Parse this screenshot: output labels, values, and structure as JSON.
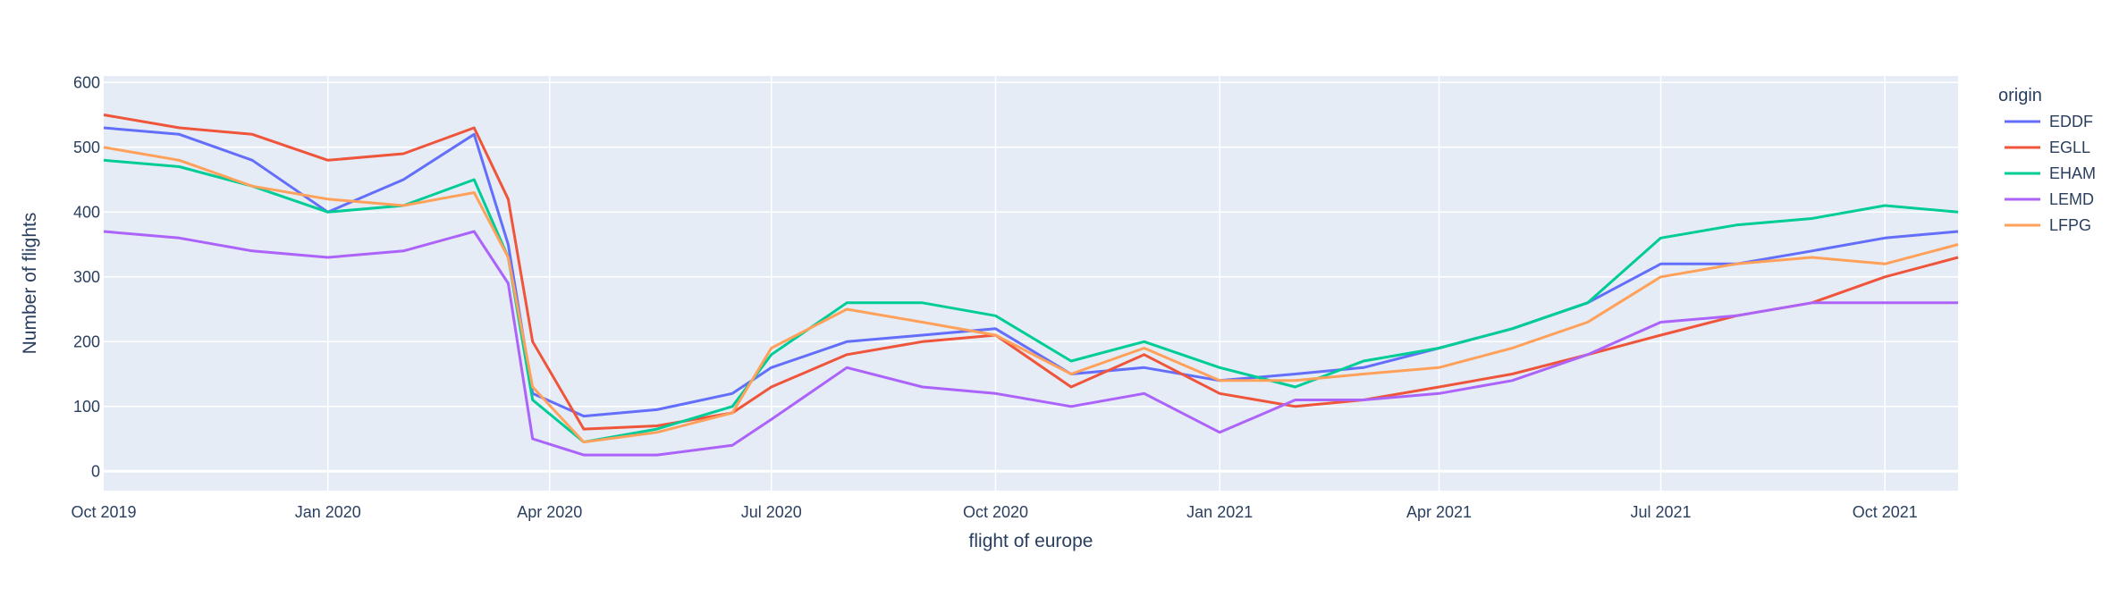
{
  "chart_data": {
    "type": "line",
    "title": "",
    "xlabel": "flight of europe",
    "ylabel": "Number of flights",
    "legend_title": "origin",
    "legend_position": "right",
    "grid": true,
    "plot_background": "#E5ECF6",
    "x_range": [
      "2019-10-01",
      "2021-10-31"
    ],
    "ylim": [
      -30,
      610
    ],
    "x_ticks": [
      {
        "date": "2019-10-01",
        "label": "Oct 2019"
      },
      {
        "date": "2020-01-01",
        "label": "Jan 2020"
      },
      {
        "date": "2020-04-01",
        "label": "Apr 2020"
      },
      {
        "date": "2020-07-01",
        "label": "Jul 2020"
      },
      {
        "date": "2020-10-01",
        "label": "Oct 2020"
      },
      {
        "date": "2021-01-01",
        "label": "Jan 2021"
      },
      {
        "date": "2021-04-01",
        "label": "Apr 2021"
      },
      {
        "date": "2021-07-01",
        "label": "Jul 2021"
      },
      {
        "date": "2021-10-01",
        "label": "Oct 2021"
      }
    ],
    "y_ticks": [
      0,
      100,
      200,
      300,
      400,
      500,
      600
    ],
    "series": [
      {
        "name": "EDDF",
        "color": "#636EFA",
        "points": [
          [
            "2019-10-01",
            530
          ],
          [
            "2019-11-01",
            520
          ],
          [
            "2019-12-01",
            480
          ],
          [
            "2020-01-01",
            400
          ],
          [
            "2020-02-01",
            450
          ],
          [
            "2020-03-01",
            520
          ],
          [
            "2020-03-15",
            350
          ],
          [
            "2020-03-25",
            120
          ],
          [
            "2020-04-15",
            85
          ],
          [
            "2020-05-15",
            95
          ],
          [
            "2020-06-15",
            120
          ],
          [
            "2020-07-01",
            160
          ],
          [
            "2020-08-01",
            200
          ],
          [
            "2020-09-01",
            210
          ],
          [
            "2020-10-01",
            220
          ],
          [
            "2020-11-01",
            150
          ],
          [
            "2020-12-01",
            160
          ],
          [
            "2021-01-01",
            140
          ],
          [
            "2021-02-01",
            150
          ],
          [
            "2021-03-01",
            160
          ],
          [
            "2021-04-01",
            190
          ],
          [
            "2021-05-01",
            220
          ],
          [
            "2021-06-01",
            260
          ],
          [
            "2021-07-01",
            320
          ],
          [
            "2021-08-01",
            320
          ],
          [
            "2021-09-01",
            340
          ],
          [
            "2021-10-01",
            360
          ],
          [
            "2021-10-31",
            370
          ]
        ]
      },
      {
        "name": "EGLL",
        "color": "#EF553B",
        "points": [
          [
            "2019-10-01",
            550
          ],
          [
            "2019-11-01",
            530
          ],
          [
            "2019-12-01",
            520
          ],
          [
            "2020-01-01",
            480
          ],
          [
            "2020-02-01",
            490
          ],
          [
            "2020-03-01",
            530
          ],
          [
            "2020-03-15",
            420
          ],
          [
            "2020-03-25",
            200
          ],
          [
            "2020-04-15",
            65
          ],
          [
            "2020-05-15",
            70
          ],
          [
            "2020-06-15",
            90
          ],
          [
            "2020-07-01",
            130
          ],
          [
            "2020-08-01",
            180
          ],
          [
            "2020-09-01",
            200
          ],
          [
            "2020-10-01",
            210
          ],
          [
            "2020-11-01",
            130
          ],
          [
            "2020-12-01",
            180
          ],
          [
            "2021-01-01",
            120
          ],
          [
            "2021-02-01",
            100
          ],
          [
            "2021-03-01",
            110
          ],
          [
            "2021-04-01",
            130
          ],
          [
            "2021-05-01",
            150
          ],
          [
            "2021-06-01",
            180
          ],
          [
            "2021-07-01",
            210
          ],
          [
            "2021-08-01",
            240
          ],
          [
            "2021-09-01",
            260
          ],
          [
            "2021-10-01",
            300
          ],
          [
            "2021-10-31",
            330
          ]
        ]
      },
      {
        "name": "EHAM",
        "color": "#00CC96",
        "points": [
          [
            "2019-10-01",
            480
          ],
          [
            "2019-11-01",
            470
          ],
          [
            "2019-12-01",
            440
          ],
          [
            "2020-01-01",
            400
          ],
          [
            "2020-02-01",
            410
          ],
          [
            "2020-03-01",
            450
          ],
          [
            "2020-03-15",
            330
          ],
          [
            "2020-03-25",
            110
          ],
          [
            "2020-04-15",
            45
          ],
          [
            "2020-05-15",
            65
          ],
          [
            "2020-06-15",
            100
          ],
          [
            "2020-07-01",
            180
          ],
          [
            "2020-08-01",
            260
          ],
          [
            "2020-09-01",
            260
          ],
          [
            "2020-10-01",
            240
          ],
          [
            "2020-11-01",
            170
          ],
          [
            "2020-12-01",
            200
          ],
          [
            "2021-01-01",
            160
          ],
          [
            "2021-02-01",
            130
          ],
          [
            "2021-03-01",
            170
          ],
          [
            "2021-04-01",
            190
          ],
          [
            "2021-05-01",
            220
          ],
          [
            "2021-06-01",
            260
          ],
          [
            "2021-07-01",
            360
          ],
          [
            "2021-08-01",
            380
          ],
          [
            "2021-09-01",
            390
          ],
          [
            "2021-10-01",
            410
          ],
          [
            "2021-10-31",
            400
          ]
        ]
      },
      {
        "name": "LEMD",
        "color": "#AB63FA",
        "points": [
          [
            "2019-10-01",
            370
          ],
          [
            "2019-11-01",
            360
          ],
          [
            "2019-12-01",
            340
          ],
          [
            "2020-01-01",
            330
          ],
          [
            "2020-02-01",
            340
          ],
          [
            "2020-03-01",
            370
          ],
          [
            "2020-03-15",
            290
          ],
          [
            "2020-03-25",
            50
          ],
          [
            "2020-04-15",
            25
          ],
          [
            "2020-05-15",
            25
          ],
          [
            "2020-06-15",
            40
          ],
          [
            "2020-07-01",
            80
          ],
          [
            "2020-08-01",
            160
          ],
          [
            "2020-09-01",
            130
          ],
          [
            "2020-10-01",
            120
          ],
          [
            "2020-11-01",
            100
          ],
          [
            "2020-12-01",
            120
          ],
          [
            "2021-01-01",
            60
          ],
          [
            "2021-02-01",
            110
          ],
          [
            "2021-03-01",
            110
          ],
          [
            "2021-04-01",
            120
          ],
          [
            "2021-05-01",
            140
          ],
          [
            "2021-06-01",
            180
          ],
          [
            "2021-07-01",
            230
          ],
          [
            "2021-08-01",
            240
          ],
          [
            "2021-09-01",
            260
          ],
          [
            "2021-10-01",
            260
          ],
          [
            "2021-10-31",
            260
          ]
        ]
      },
      {
        "name": "LFPG",
        "color": "#FFA15A",
        "points": [
          [
            "2019-10-01",
            500
          ],
          [
            "2019-11-01",
            480
          ],
          [
            "2019-12-01",
            440
          ],
          [
            "2020-01-01",
            420
          ],
          [
            "2020-02-01",
            410
          ],
          [
            "2020-03-01",
            430
          ],
          [
            "2020-03-15",
            330
          ],
          [
            "2020-03-25",
            130
          ],
          [
            "2020-04-15",
            45
          ],
          [
            "2020-05-15",
            60
          ],
          [
            "2020-06-15",
            90
          ],
          [
            "2020-07-01",
            190
          ],
          [
            "2020-08-01",
            250
          ],
          [
            "2020-09-01",
            230
          ],
          [
            "2020-10-01",
            210
          ],
          [
            "2020-11-01",
            150
          ],
          [
            "2020-12-01",
            190
          ],
          [
            "2021-01-01",
            140
          ],
          [
            "2021-02-01",
            140
          ],
          [
            "2021-03-01",
            150
          ],
          [
            "2021-04-01",
            160
          ],
          [
            "2021-05-01",
            190
          ],
          [
            "2021-06-01",
            230
          ],
          [
            "2021-07-01",
            300
          ],
          [
            "2021-08-01",
            320
          ],
          [
            "2021-09-01",
            330
          ],
          [
            "2021-10-01",
            320
          ],
          [
            "2021-10-31",
            350
          ]
        ]
      }
    ],
    "annotations": []
  }
}
